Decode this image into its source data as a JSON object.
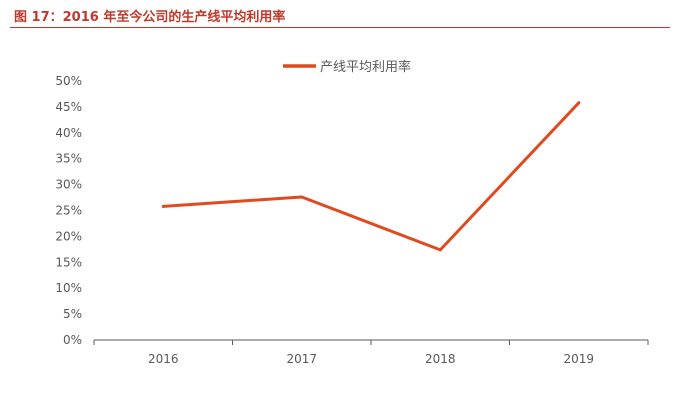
{
  "figure": {
    "title": "图 17：2016 年至今公司的生产线平均利用率"
  },
  "colors": {
    "title": "#c0392b",
    "series": "#e04a1f",
    "axis": "#595959"
  },
  "chart_data": {
    "type": "line",
    "x": [
      "2016",
      "2017",
      "2018",
      "2019"
    ],
    "series": [
      {
        "name": "产线平均利用率",
        "values": [
          25.8,
          27.6,
          17.4,
          45.8
        ]
      }
    ],
    "y_ticks": [
      "0%",
      "5%",
      "10%",
      "15%",
      "20%",
      "25%",
      "30%",
      "35%",
      "40%",
      "45%",
      "50%"
    ],
    "ylim": [
      0,
      50
    ],
    "y_unit": "%",
    "grid": false,
    "legend": "top-center"
  }
}
